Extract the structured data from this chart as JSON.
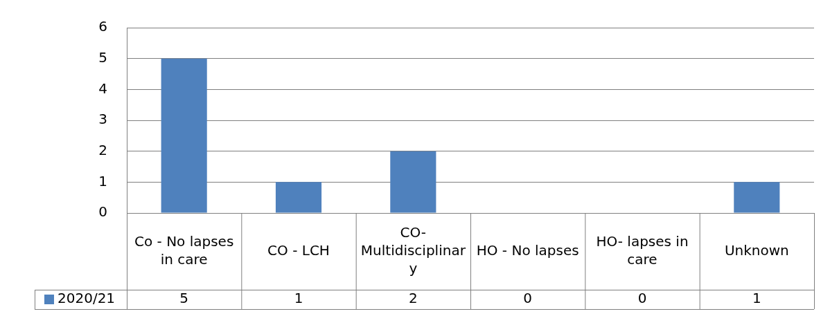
{
  "chart_data": {
    "type": "bar",
    "categories": [
      "Co - No lapses in care",
      "CO - LCH",
      "CO-Multidisciplinary",
      "HO - No lapses",
      "HO- lapses in care",
      "Unknown"
    ],
    "series": [
      {
        "name": "2020/21",
        "color": "#4f81bd",
        "values": [
          5,
          1,
          2,
          0,
          0,
          1
        ]
      }
    ],
    "ylim": [
      0,
      6
    ],
    "yticks": [
      0,
      1,
      2,
      3,
      4,
      5,
      6
    ],
    "grid": "y",
    "legend": "bottom",
    "data_labels": true
  }
}
